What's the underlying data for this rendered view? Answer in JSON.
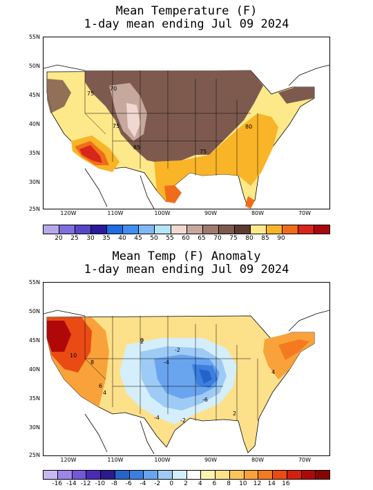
{
  "top": {
    "title_line1": "Mean Temperature (F)",
    "title_line2": "1-day mean ending Jul 09 2024",
    "lat_labels": [
      "55N",
      "50N",
      "45N",
      "40N",
      "35N",
      "30N",
      "25N"
    ],
    "lon_labels": [
      "120W",
      "110W",
      "100W",
      "90W",
      "80W",
      "70W"
    ],
    "contour_labels": [
      "75",
      "70",
      "75",
      "85",
      "75",
      "80"
    ],
    "colorbar": {
      "colors": [
        "#b7a8e8",
        "#7d6fe0",
        "#5547c8",
        "#2a1a9c",
        "#1f6de0",
        "#3f8ef0",
        "#7eb8f5",
        "#b6e4f7",
        "#f0d8d0",
        "#c7a89c",
        "#a07a70",
        "#7e5a4e",
        "#5c3a32",
        "#fde98a",
        "#f9b428",
        "#ef6d1a",
        "#d8261a",
        "#a8080e"
      ],
      "labels": [
        "20",
        "25",
        "30",
        "35",
        "40",
        "45",
        "50",
        "55",
        "60",
        "65",
        "70",
        "75",
        "80",
        "85",
        "90"
      ]
    }
  },
  "bottom": {
    "title_line1": "Mean Temp (F) Anomaly",
    "title_line2": "1-day mean ending Jul 09 2024",
    "lat_labels": [
      "55N",
      "50N",
      "45N",
      "40N",
      "35N",
      "30N",
      "25N"
    ],
    "lon_labels": [
      "120W",
      "110W",
      "100W",
      "90W",
      "80W",
      "70W"
    ],
    "contour_labels": [
      "10",
      "8",
      "6",
      "4",
      "2",
      "-4",
      "-2",
      "-6",
      "-4",
      "-2",
      "2",
      "4",
      "0"
    ],
    "colorbar": {
      "colors": [
        "#c9b8f0",
        "#9d86e8",
        "#7358d8",
        "#4b2bb4",
        "#2a1a8c",
        "#2563c8",
        "#3b7fe0",
        "#69a4ee",
        "#9ecbf5",
        "#d4eefb",
        "#ffffff",
        "#fff3b0",
        "#fde08a",
        "#fbc45a",
        "#f9a23a",
        "#f47a22",
        "#ea4a14",
        "#d4200e",
        "#b00808",
        "#860404"
      ],
      "labels": [
        "-16",
        "-14",
        "-12",
        "-10",
        "-8",
        "-6",
        "-4",
        "-2",
        "0",
        "2",
        "4",
        "6",
        "8",
        "10",
        "12",
        "14",
        "16"
      ]
    }
  }
}
